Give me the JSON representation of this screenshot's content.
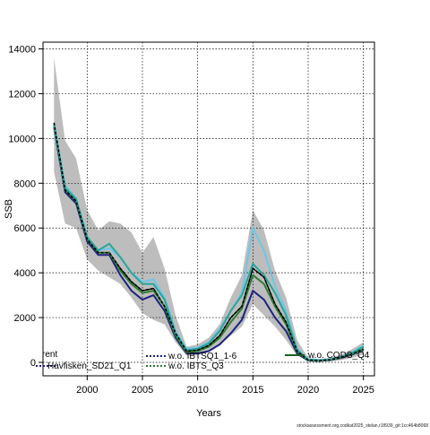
{
  "chart_data": {
    "type": "line",
    "title": "",
    "xlabel": "Years",
    "ylabel": "SSB",
    "xlim": [
      1996,
      2026
    ],
    "ylim": [
      -600,
      14300
    ],
    "xticks": [
      2000,
      2005,
      2010,
      2015,
      2020,
      2025
    ],
    "yticks": [
      0,
      2000,
      4000,
      6000,
      8000,
      10000,
      12000,
      14000
    ],
    "grid": true,
    "grid_style": "dotted",
    "legend_position": "bottom-left",
    "confidence_band": {
      "x": [
        1997,
        1998,
        1999,
        2000,
        2001,
        2002,
        2003,
        2004,
        2005,
        2006,
        2007,
        2008,
        2009,
        2010,
        2011,
        2012,
        2013,
        2014,
        2015,
        2016,
        2017,
        2018,
        2019,
        2020,
        2021,
        2022,
        2023,
        2024,
        2025
      ],
      "upper": [
        13600,
        9900,
        9100,
        6800,
        5900,
        6300,
        6200,
        5800,
        4900,
        5600,
        4200,
        2100,
        700,
        800,
        1100,
        1700,
        2900,
        3900,
        6800,
        5900,
        4100,
        2900,
        1000,
        200,
        150,
        200,
        350,
        600,
        900
      ],
      "lower": [
        8500,
        6200,
        6000,
        4600,
        4100,
        3800,
        3500,
        2900,
        2200,
        1900,
        1700,
        900,
        300,
        300,
        500,
        800,
        1200,
        1600,
        2600,
        2100,
        1600,
        1000,
        300,
        60,
        40,
        50,
        100,
        200,
        350
      ],
      "color": "#bdbdbd"
    },
    "series": [
      {
        "name": "",
        "color": "#000000",
        "dash": "solid",
        "width": 1.2,
        "x": [
          1997,
          1998,
          1999,
          2000,
          2001,
          2002,
          2003,
          2004,
          2005,
          2006,
          2007,
          2008,
          2009,
          2010,
          2011,
          2012,
          2013,
          2014,
          2015,
          2016,
          2017,
          2018,
          2019,
          2020,
          2021,
          2022,
          2023,
          2024,
          2025
        ],
        "values": [
          10700,
          7700,
          7200,
          5500,
          4900,
          4900,
          4200,
          3600,
          3200,
          3300,
          2500,
          1300,
          500,
          550,
          750,
          1200,
          2000,
          2500,
          4200,
          3800,
          2600,
          1800,
          500,
          100,
          80,
          120,
          230,
          380,
          600
        ]
      },
      {
        "name": "Havfisken_SD21_Q1",
        "color": "#1a237e",
        "dash": "solid",
        "width": 2,
        "x": [
          1997,
          1998,
          1999,
          2000,
          2001,
          2002,
          2003,
          2004,
          2005,
          2006,
          2007,
          2008,
          2009,
          2010,
          2011,
          2012,
          2013,
          2014,
          2015,
          2016,
          2017,
          2018,
          2019,
          2020,
          2021,
          2022,
          2023,
          2024,
          2025
        ],
        "values": [
          10500,
          7600,
          7100,
          5400,
          4800,
          4800,
          3900,
          3200,
          2800,
          3000,
          2300,
          1100,
          400,
          400,
          500,
          800,
          1300,
          1900,
          3200,
          2800,
          2000,
          1400,
          400,
          80,
          60,
          100,
          200,
          350,
          550
        ]
      },
      {
        "name": "w.o. IBTSQ1_1-6",
        "color": "#6ec6e6",
        "dash": "solid",
        "width": 2,
        "x": [
          1997,
          1998,
          1999,
          2000,
          2001,
          2002,
          2003,
          2004,
          2005,
          2006,
          2007,
          2008,
          2009,
          2010,
          2011,
          2012,
          2013,
          2014,
          2015,
          2016,
          2017,
          2018,
          2019,
          2020,
          2021,
          2022,
          2023,
          2024,
          2025
        ],
        "values": [
          10600,
          7900,
          7300,
          5600,
          5000,
          5100,
          4700,
          4000,
          3600,
          3700,
          2900,
          1400,
          600,
          650,
          900,
          1500,
          2300,
          3100,
          6000,
          5000,
          3400,
          2300,
          600,
          130,
          100,
          140,
          260,
          450,
          750
        ]
      },
      {
        "name": "w.o. IBTS_Q3",
        "color": "#2e7d32",
        "dash": "solid",
        "width": 2,
        "x": [
          1997,
          1998,
          1999,
          2000,
          2001,
          2002,
          2003,
          2004,
          2005,
          2006,
          2007,
          2008,
          2009,
          2010,
          2011,
          2012,
          2013,
          2014,
          2015,
          2016,
          2017,
          2018,
          2019,
          2020,
          2021,
          2022,
          2023,
          2024,
          2025
        ],
        "values": [
          10600,
          7700,
          7200,
          5500,
          4900,
          4900,
          4100,
          3500,
          3100,
          3200,
          2500,
          1200,
          450,
          500,
          700,
          1100,
          1800,
          2400,
          3900,
          3500,
          2500,
          1700,
          480,
          90,
          70,
          110,
          220,
          370,
          580
        ]
      },
      {
        "name": "w.o. CODS_Q4",
        "color": "#26a69a",
        "dash": "solid",
        "width": 2,
        "x": [
          1997,
          1998,
          1999,
          2000,
          2001,
          2002,
          2003,
          2004,
          2005,
          2006,
          2007,
          2008,
          2009,
          2010,
          2011,
          2012,
          2013,
          2014,
          2015,
          2016,
          2017,
          2018,
          2019,
          2020,
          2021,
          2022,
          2023,
          2024,
          2025
        ],
        "values": [
          10600,
          7800,
          7300,
          5600,
          5000,
          5300,
          4700,
          4000,
          3500,
          3500,
          2800,
          1300,
          550,
          600,
          850,
          1400,
          2300,
          3000,
          4400,
          3900,
          3100,
          2100,
          550,
          120,
          90,
          130,
          250,
          420,
          700
        ]
      }
    ],
    "dashed_overlays": [
      {
        "series": 0,
        "color": "#000000",
        "dash": "3,2"
      }
    ],
    "legend": {
      "entries": [
        {
          "label": "rent",
          "color": "#000000",
          "style": "none"
        },
        {
          "label": "Havfisken_SD21_Q1",
          "color": "#1a237e",
          "style": "dotted"
        },
        {
          "label": "w.o. IBTSQ1_1-6",
          "color": "#1a237e",
          "style": "dotted"
        },
        {
          "label": "w.o. IBTS_Q3",
          "color": "#2e7d32",
          "style": "dotted"
        },
        {
          "label": "w.o. CODS_Q4",
          "color": "#1b5e20",
          "style": "solid"
        }
      ]
    },
    "footer_text": "stockassessment.org,codkat2025_stelan,r18939_git:1cc464b8068"
  }
}
